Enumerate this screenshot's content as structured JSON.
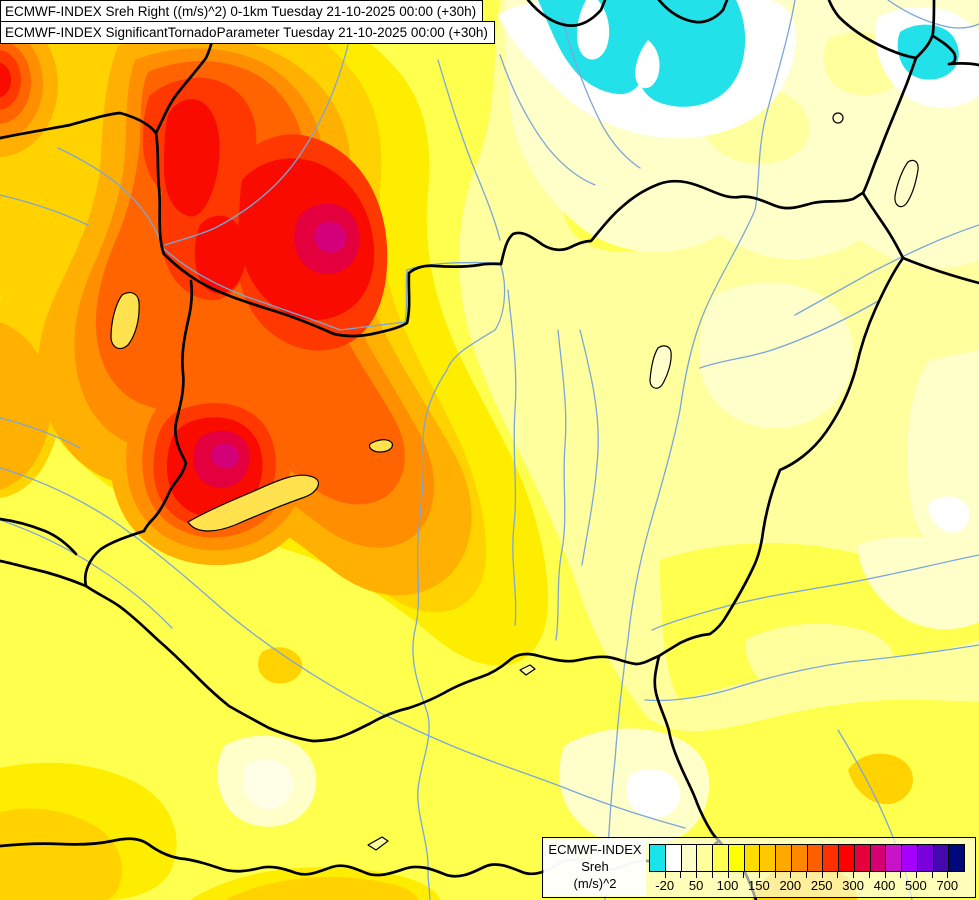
{
  "titles": {
    "line1": "ECMWF-INDEX Sreh Right ((m/s)^2) 0-1km Tuesday 21-10-2025 00:00 (+30h)",
    "line2": "ECMWF-INDEX SignificantTornadoParameter Tuesday 21-10-2025 00:00 (+30h)"
  },
  "legend": {
    "title": "ECMWF-INDEX",
    "parameter": "Sreh",
    "units": "(m/s)^2",
    "cells": [
      "#19E4EC",
      "#FFFFFF",
      "#FFFFC9",
      "#FFFF9B",
      "#FFFF4F",
      "#FFFF00",
      "#FFDC00",
      "#FFC800",
      "#FFA800",
      "#FF8800",
      "#FF5E00",
      "#FF3000",
      "#FF0000",
      "#E6003E",
      "#D50072",
      "#C614C6",
      "#A500FF",
      "#7A00DC",
      "#4508AE",
      "#00087E"
    ],
    "ticks": [
      {
        "label": "-20",
        "boundary": 1
      },
      {
        "label": "50",
        "boundary": 3
      },
      {
        "label": "100",
        "boundary": 5
      },
      {
        "label": "150",
        "boundary": 7
      },
      {
        "label": "200",
        "boundary": 9
      },
      {
        "label": "250",
        "boundary": 11
      },
      {
        "label": "300",
        "boundary": 13
      },
      {
        "label": "400",
        "boundary": 15
      },
      {
        "label": "500",
        "boundary": 17
      },
      {
        "label": "700",
        "boundary": 19
      }
    ]
  },
  "palette": {
    "base": "#FFFF9E",
    "cream": "#FFFFC9",
    "cream_light": "#FFFFE8",
    "white": "#FFFFFF",
    "cyan": "#22E1E9",
    "yellow": "#FFFF4D",
    "deep_yellow": "#FFED00",
    "gold": "#FFD200",
    "amber": "#FFB000",
    "orange": "#FF8E00",
    "dark_orange": "#FF6400",
    "orange_red": "#FF3800",
    "red": "#F90B00",
    "crimson": "#E4003F",
    "magenta": "#D4007A",
    "river": "#7BA6D9",
    "border": "#000000",
    "lake_fill": "#FFE24D"
  }
}
